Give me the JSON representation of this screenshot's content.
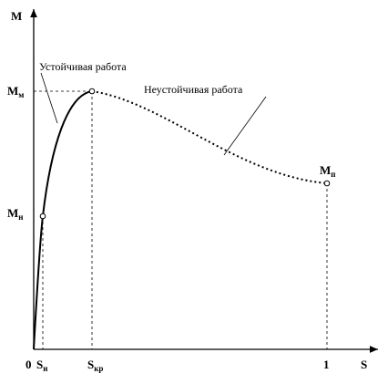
{
  "axes": {
    "y_label": "M",
    "x_label": "S",
    "origin": "0"
  },
  "x_ticks": [
    {
      "main": "S",
      "sub": "н"
    },
    {
      "main": "S",
      "sub": "кр"
    },
    {
      "main": "1"
    }
  ],
  "y_ticks": [
    {
      "main": "M",
      "sub": "м"
    },
    {
      "main": "M",
      "sub": "н"
    }
  ],
  "point_label": {
    "main": "M",
    "sub": "п"
  },
  "annotations": [
    "Устойчивая работа",
    "Неустойчивая работа"
  ]
}
